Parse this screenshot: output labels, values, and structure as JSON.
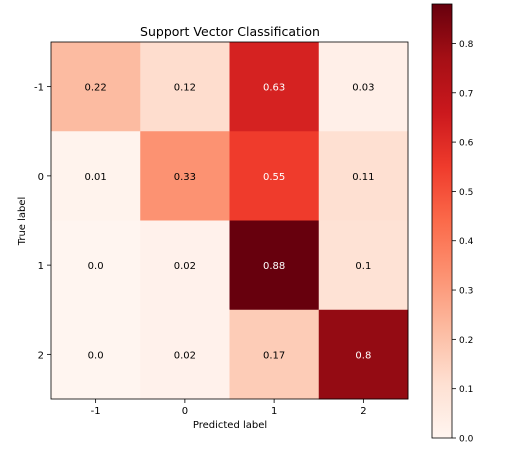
{
  "chart_data": {
    "type": "heatmap",
    "title": "Support Vector Classification",
    "xlabel": "Predicted label",
    "ylabel": "True label",
    "x_categories": [
      "-1",
      "0",
      "1",
      "2"
    ],
    "y_categories": [
      "-1",
      "0",
      "1",
      "2"
    ],
    "matrix": [
      [
        0.22,
        0.12,
        0.63,
        0.03
      ],
      [
        0.01,
        0.33,
        0.55,
        0.11
      ],
      [
        0.0,
        0.02,
        0.88,
        0.1
      ],
      [
        0.0,
        0.02,
        0.17,
        0.8
      ]
    ],
    "cell_labels": [
      [
        "0.22",
        "0.12",
        "0.63",
        "0.03"
      ],
      [
        "0.01",
        "0.33",
        "0.55",
        "0.11"
      ],
      [
        "0.0",
        "0.02",
        "0.88",
        "0.1"
      ],
      [
        "0.0",
        "0.02",
        "0.17",
        "0.8"
      ]
    ],
    "value_range": [
      0.0,
      0.88
    ],
    "colormap": "Reds",
    "colorbar": {
      "ticks": [
        0.0,
        0.1,
        0.2,
        0.3,
        0.4,
        0.5,
        0.6,
        0.7,
        0.8
      ],
      "tick_labels": [
        "0.0",
        "0.1",
        "0.2",
        "0.3",
        "0.4",
        "0.5",
        "0.6",
        "0.7",
        "0.8"
      ],
      "placement": "right"
    },
    "grid": false
  }
}
